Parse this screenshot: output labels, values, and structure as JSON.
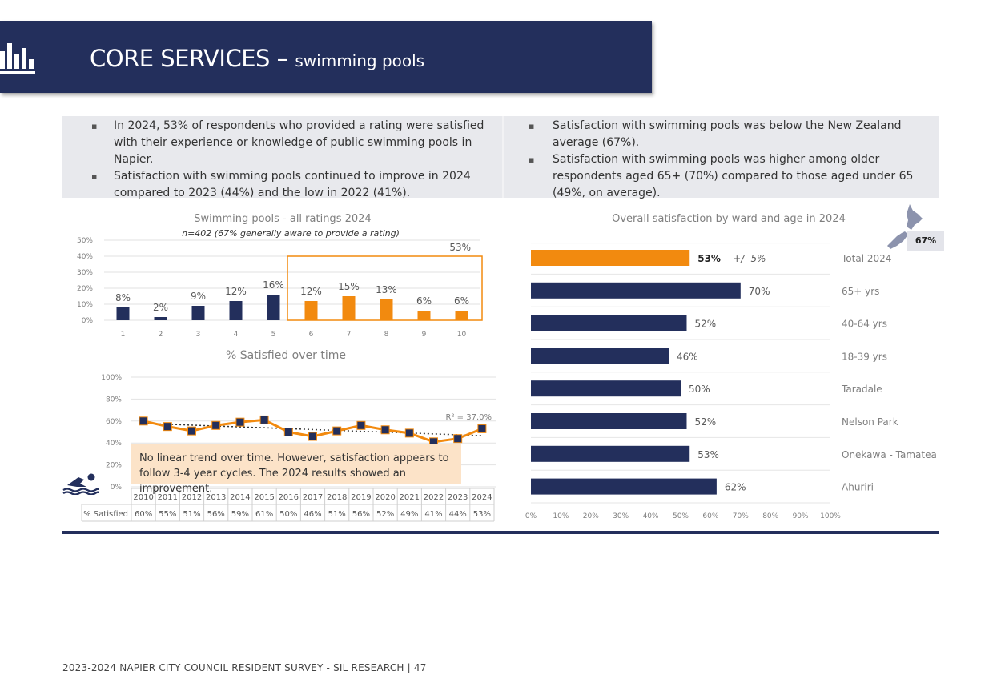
{
  "header": {
    "title": "CORE SERVICES – ",
    "subtitle": "swimming pools"
  },
  "summary": {
    "left": [
      "In 2024, 53% of respondents who provided a rating were satisfied with their experience or knowledge of public swimming pools in Napier.",
      "Satisfaction with swimming pools continued to improve in 2024 compared to 2023 (44%) and the low in 2022 (41%)."
    ],
    "right": [
      "Satisfaction with swimming pools was below the New Zealand average (67%).",
      "Satisfaction with swimming pools was higher among older respondents aged 65+ (70%) compared to those aged under 65 (49%, on average)."
    ]
  },
  "colors": {
    "navy": "#232f5c",
    "orange": "#f28a0f",
    "summary_bg": "#e8e9ed",
    "note_bg": "#fce3c8"
  },
  "icons": {
    "header": "bar-chart-icon",
    "swimmer": "swimmer-icon",
    "nz_map": "new-zealand-map-icon"
  },
  "note": "No linear trend over time. However, satisfaction appears to follow 3-4 year cycles. The 2024 results showed an improvement.",
  "nz_average": "67%",
  "footer": "2023-2024 NAPIER CITY COUNCIL RESIDENT SURVEY - SIL RESEARCH | 47",
  "chart_data": [
    {
      "type": "bar",
      "title": "Swimming pools - all ratings 2024",
      "subtitle": "n=402 (67% generally aware to provide a rating)",
      "categories": [
        "1",
        "2",
        "3",
        "4",
        "5",
        "6",
        "7",
        "8",
        "9",
        "10"
      ],
      "values": [
        8,
        2,
        9,
        12,
        16,
        12,
        15,
        13,
        6,
        6
      ],
      "labels": [
        "8%",
        "2%",
        "9%",
        "12%",
        "16%",
        "12%",
        "15%",
        "13%",
        "6%",
        "6%"
      ],
      "highlight": {
        "from": "6",
        "to": "10",
        "label": "53%"
      },
      "ylim": [
        0,
        50
      ],
      "yticks": [
        "0%",
        "10%",
        "20%",
        "30%",
        "40%",
        "50%"
      ],
      "grid": true
    },
    {
      "type": "line",
      "title": "% Satisfied over time",
      "x": [
        "2010",
        "2011",
        "2012",
        "2013",
        "2014",
        "2015",
        "2016",
        "2017",
        "2018",
        "2019",
        "2020",
        "2021",
        "2022",
        "2023",
        "2024"
      ],
      "values": [
        60,
        55,
        51,
        56,
        59,
        61,
        50,
        46,
        51,
        56,
        52,
        49,
        41,
        44,
        53
      ],
      "table_labels": [
        "60%",
        "55%",
        "51%",
        "56%",
        "59%",
        "61%",
        "50%",
        "46%",
        "51%",
        "56%",
        "52%",
        "49%",
        "41%",
        "44%",
        "53%"
      ],
      "row_label": "% Satisfied",
      "trendline": true,
      "r2": "R² = 37.0%",
      "ylim": [
        0,
        100
      ],
      "yticks": [
        "0%",
        "20%",
        "40%",
        "60%",
        "80%",
        "100%"
      ],
      "grid": true
    },
    {
      "type": "bar",
      "orientation": "horizontal",
      "title": "Overall satisfaction by ward and age in 2024",
      "categories": [
        "Total 2024",
        "65+ yrs",
        "40-64 yrs",
        "18-39 yrs",
        "Taradale",
        "Nelson Park",
        "Onekawa - Tamatea",
        "Ahuriri"
      ],
      "values": [
        53,
        70,
        52,
        46,
        50,
        52,
        53,
        62
      ],
      "labels": [
        "53%",
        "70%",
        "52%",
        "46%",
        "50%",
        "52%",
        "53%",
        "62%"
      ],
      "highlight_index": 0,
      "margin_of_error": "+/- 5%",
      "xlim": [
        0,
        100
      ],
      "xticks": [
        "0%",
        "10%",
        "20%",
        "30%",
        "40%",
        "50%",
        "60%",
        "70%",
        "80%",
        "90%",
        "100%"
      ],
      "grid": true
    }
  ]
}
